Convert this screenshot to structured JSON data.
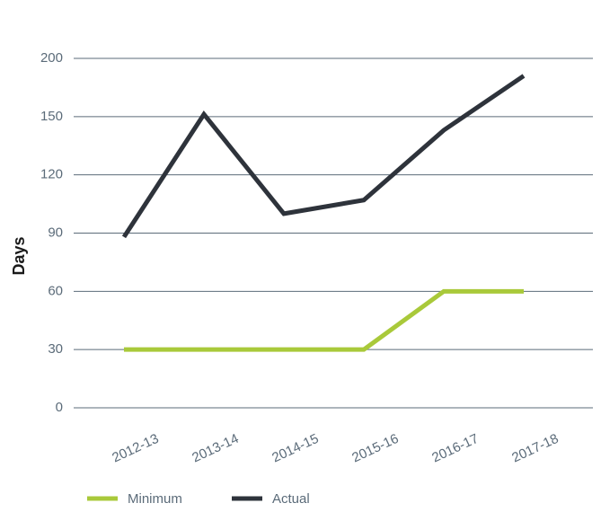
{
  "chart_data": {
    "type": "line",
    "y_label": "Days",
    "categories": [
      "2012-13",
      "2013-14",
      "2014-15",
      "2015-16",
      "2016-17",
      "2017-18"
    ],
    "series": [
      {
        "name": "Minimum",
        "color": "#a9c93a",
        "values": [
          30,
          30,
          30,
          30,
          60,
          60
        ]
      },
      {
        "name": "Actual",
        "color": "#2e333b",
        "values": [
          88,
          152,
          100,
          107,
          143,
          185
        ]
      }
    ],
    "ylim": [
      0,
      200
    ],
    "yticks": [
      0,
      30,
      60,
      90,
      120,
      150,
      200
    ],
    "grid": true,
    "legend": "bottom"
  }
}
